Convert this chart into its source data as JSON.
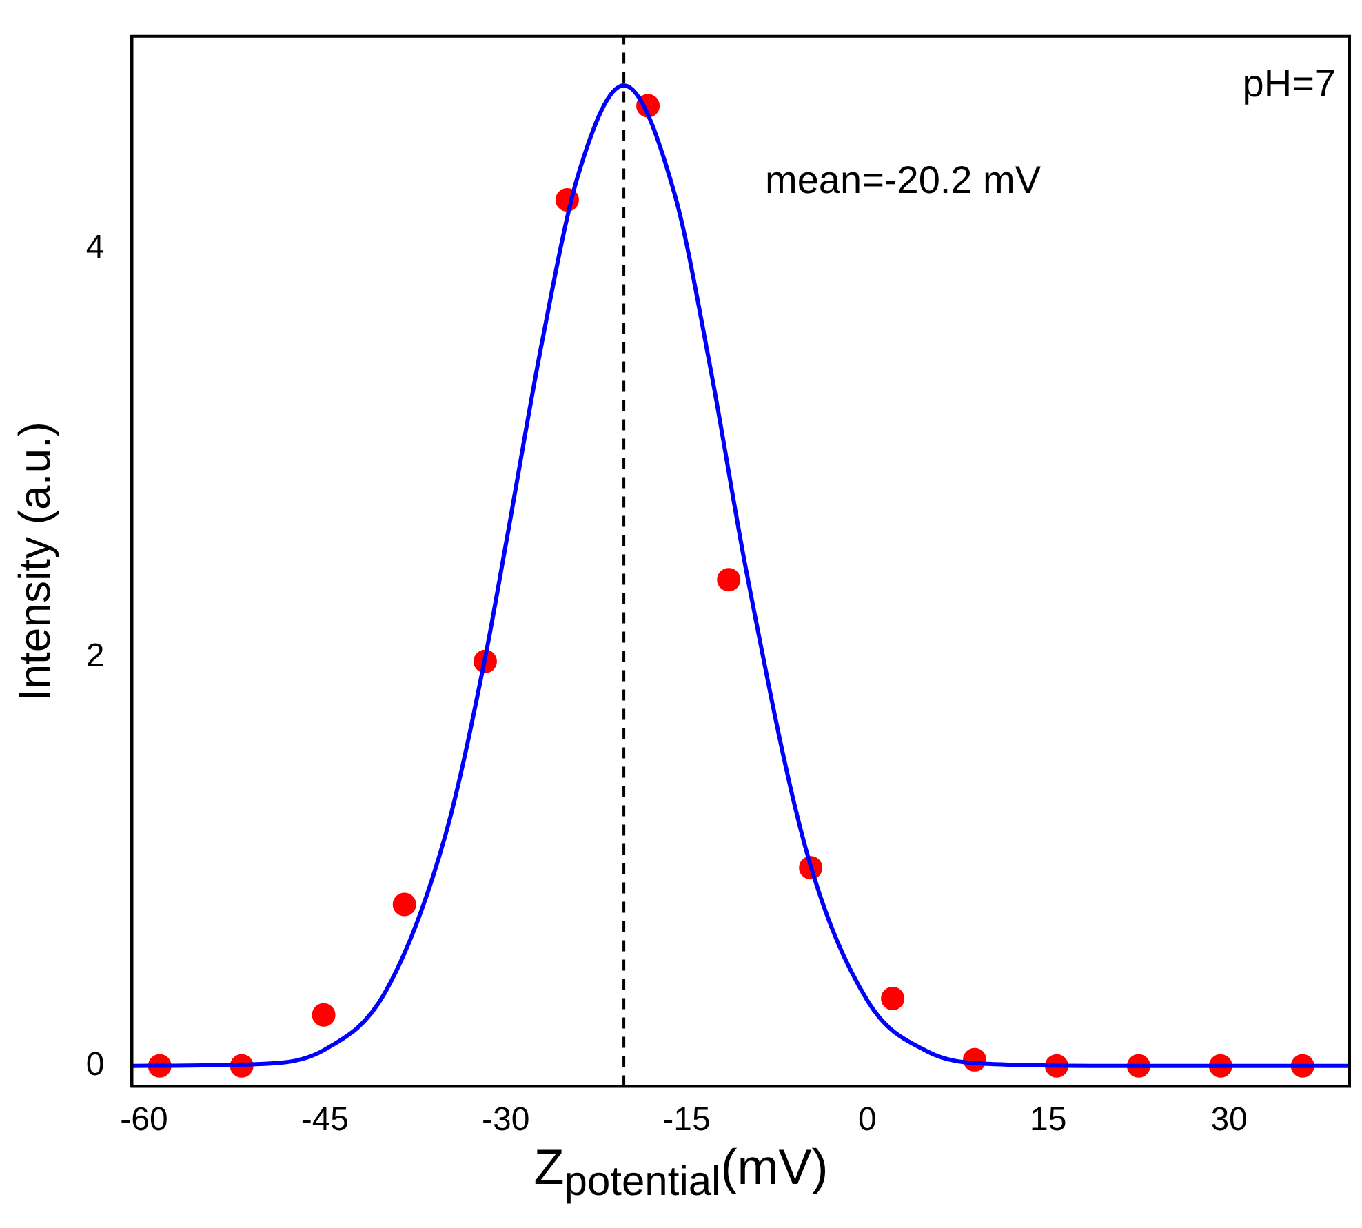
{
  "chart_data": {
    "type": "scatter",
    "xlabel": "Z$_{potential}$(mV)",
    "ylabel": "Intensity (a.u.)",
    "xlim": [
      -61,
      40
    ],
    "xticks": [
      -60,
      -45,
      -30,
      -15,
      0,
      15,
      30
    ],
    "ylim": [
      -0.1,
      5.04
    ],
    "yticks": [
      0,
      2,
      4
    ],
    "grid": false,
    "legend": false,
    "series": [
      {
        "type": "line",
        "color": "#0000ff",
        "marker": "none",
        "x": [
          -61,
          -50,
          -45,
          -40,
          -35,
          -31.7,
          -30,
          -27,
          -24,
          -20.2,
          -16,
          -13,
          -10,
          -5,
          0,
          5,
          10,
          20,
          40
        ],
        "values": [
          0,
          0.01,
          0.08,
          0.36,
          1.13,
          2.0,
          2.55,
          3.54,
          4.36,
          4.8,
          4.27,
          3.41,
          2.41,
          1.04,
          0.32,
          0.07,
          0.01,
          0,
          0
        ]
      },
      {
        "type": "scatter",
        "color": "#ff0000",
        "marker": "circle",
        "x": [
          -58.7,
          -51.9,
          -45.1,
          -38.4,
          -31.7,
          -24.9,
          -18.2,
          -11.5,
          -4.7,
          2.1,
          8.9,
          15.7,
          22.5,
          29.3,
          36.1
        ],
        "values": [
          0,
          0,
          0.25,
          0.79,
          1.98,
          4.24,
          4.7,
          2.38,
          0.97,
          0.33,
          0.03,
          0,
          0,
          0,
          0
        ]
      }
    ],
    "ref_lines": [
      {
        "axis": "x",
        "value": -20.2,
        "color": "#000000",
        "line_style": "dashed"
      }
    ],
    "annotations": [
      "pH=7",
      "mean=-20.2 mV"
    ]
  }
}
